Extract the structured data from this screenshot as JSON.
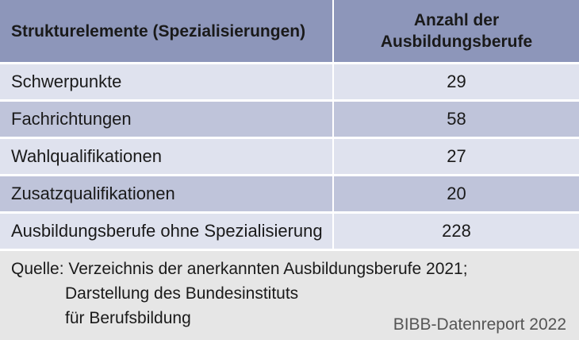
{
  "table": {
    "header": {
      "col1": "Strukturelemente (Spezialisierungen)",
      "col2_line1": "Anzahl der",
      "col2_line2": "Ausbildungsberufe"
    },
    "rows": [
      {
        "label": "Schwerpunkte",
        "value": "29"
      },
      {
        "label": "Fachrichtungen",
        "value": "58"
      },
      {
        "label": "Wahlqualifikationen",
        "value": "27"
      },
      {
        "label": "Zusatzqualifikationen",
        "value": "20"
      },
      {
        "label": "Ausbildungsberufe ohne Spezialisierung",
        "value": "228"
      }
    ]
  },
  "source": {
    "line1": "Quelle: Verzeichnis der anerkannten Ausbildungsberufe 2021;",
    "line2": "Darstellung des Bundesinstituts",
    "line3": "für Berufsbildung"
  },
  "publisher": "BIBB-Datenreport 2022",
  "colors": {
    "header_bg": "#8d96ba",
    "row_light": "#dfe2ee",
    "row_dark": "#bfc4da",
    "footer_bg": "#e6e6e6"
  }
}
